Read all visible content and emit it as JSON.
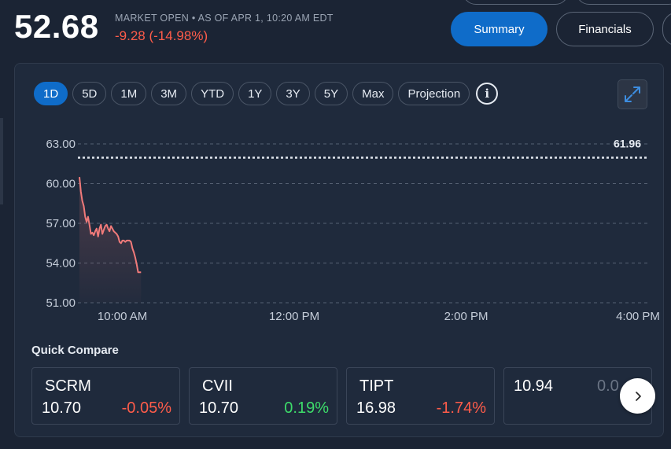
{
  "header": {
    "price": "52.68",
    "market_status": "MARKET OPEN • AS OF APR 1, 10:20 AM EDT",
    "change": "-9.28 (-14.98%)",
    "summary_label": "Summary",
    "financials_label": "Financials"
  },
  "ranges": [
    "1D",
    "5D",
    "1M",
    "3M",
    "YTD",
    "1Y",
    "3Y",
    "5Y",
    "Max",
    "Projection"
  ],
  "active_range": "1D",
  "info_icon": "info-circle-icon",
  "expand_icon": "expand-arrows-icon",
  "chart_data": {
    "type": "line",
    "ylim": [
      51,
      63
    ],
    "y_ticks": [
      "63.00",
      "60.00",
      "57.00",
      "54.00",
      "51.00"
    ],
    "y_tick_values": [
      63,
      60,
      57,
      54,
      51
    ],
    "x_ticks": [
      "10:00 AM",
      "12:00 PM",
      "2:00 PM",
      "4:00 PM"
    ],
    "x_tick_values": [
      "10:00",
      "12:00",
      "14:00",
      "16:00"
    ],
    "reference_line": {
      "value": 61.96,
      "label": "61.96"
    },
    "series": [
      {
        "color": "#f07a7a",
        "points": [
          [
            "09:30",
            60.5
          ],
          [
            "09:31",
            59.4
          ],
          [
            "09:32",
            58.7
          ],
          [
            "09:33",
            58.3
          ],
          [
            "09:34",
            57.5
          ],
          [
            "09:35",
            57.1
          ],
          [
            "09:36",
            57.5
          ],
          [
            "09:37",
            56.9
          ],
          [
            "09:38",
            56.2
          ],
          [
            "09:39",
            56.3
          ],
          [
            "09:40",
            56.1
          ],
          [
            "09:41",
            56.4
          ],
          [
            "09:42",
            56.6
          ],
          [
            "09:43",
            56.0
          ],
          [
            "09:44",
            56.6
          ],
          [
            "09:45",
            56.9
          ],
          [
            "09:46",
            56.2
          ],
          [
            "09:47",
            56.5
          ],
          [
            "09:48",
            56.8
          ],
          [
            "09:49",
            56.9
          ],
          [
            "09:50",
            56.6
          ],
          [
            "09:51",
            56.4
          ],
          [
            "09:52",
            56.8
          ],
          [
            "09:53",
            56.6
          ],
          [
            "09:54",
            56.4
          ],
          [
            "09:55",
            56.3
          ],
          [
            "09:56",
            56.2
          ],
          [
            "09:57",
            56.0
          ],
          [
            "09:58",
            55.6
          ],
          [
            "09:59",
            55.5
          ],
          [
            "10:00",
            55.7
          ],
          [
            "10:01",
            55.7
          ],
          [
            "10:02",
            55.6
          ],
          [
            "10:03",
            55.7
          ],
          [
            "10:04",
            55.7
          ],
          [
            "10:05",
            55.7
          ],
          [
            "10:06",
            55.6
          ],
          [
            "10:07",
            55.1
          ],
          [
            "10:08",
            54.8
          ],
          [
            "10:09",
            54.4
          ],
          [
            "10:10",
            53.9
          ],
          [
            "10:11",
            53.3
          ],
          [
            "10:12",
            53.3
          ],
          [
            "10:13",
            53.3
          ]
        ]
      }
    ],
    "grid": true
  },
  "quick_compare": {
    "title": "Quick Compare",
    "items": [
      {
        "symbol": "SCRM",
        "value": "10.70",
        "change": "-0.05%",
        "direction": "down"
      },
      {
        "symbol": "CVII",
        "value": "10.70",
        "change": "0.19%",
        "direction": "up"
      },
      {
        "symbol": "TIPT",
        "value": "16.98",
        "change": "-1.74%",
        "direction": "down"
      }
    ],
    "partial_item": {
      "value": "10.94",
      "change": "0.0"
    },
    "next_icon": "chevron-right-icon"
  },
  "colors": {
    "accent": "#0f6cc9",
    "negative": "#ff5c4a",
    "positive": "#3ddc6a",
    "background": "#1b2434",
    "card": "#1f2a3c"
  }
}
